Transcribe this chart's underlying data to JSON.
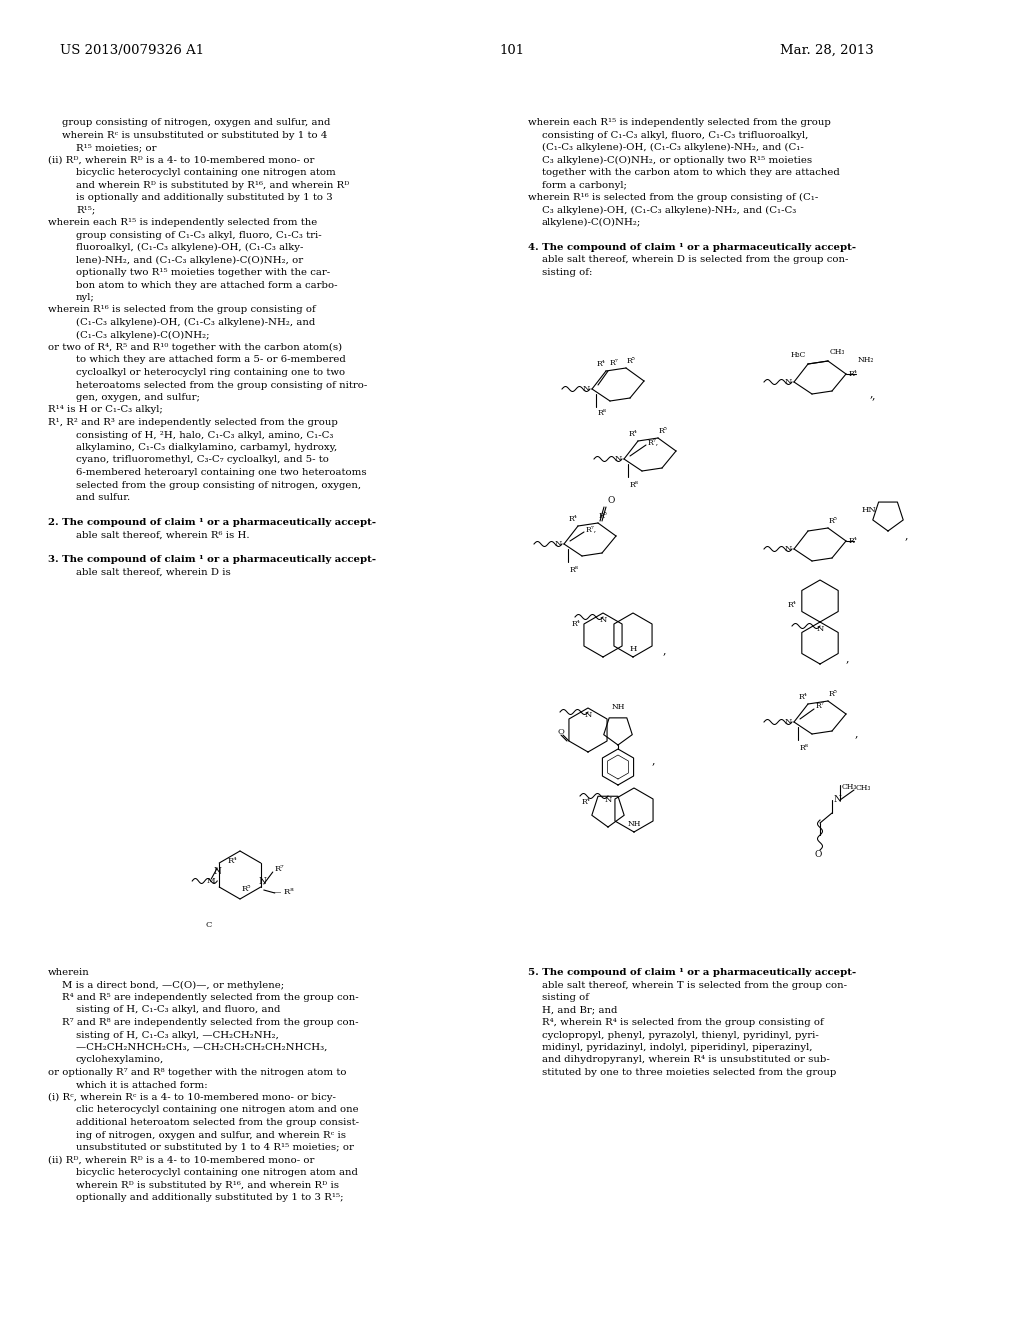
{
  "page_number": "101",
  "patent_number": "US 2013/0079326 A1",
  "patent_date": "Mar. 28, 2013",
  "bg": "#ffffff"
}
